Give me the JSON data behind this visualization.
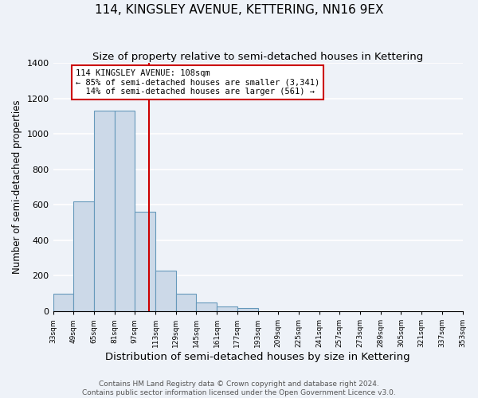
{
  "title": "114, KINGSLEY AVENUE, KETTERING, NN16 9EX",
  "subtitle": "Size of property relative to semi-detached houses in Kettering",
  "xlabel": "Distribution of semi-detached houses by size in Kettering",
  "ylabel": "Number of semi-detached properties",
  "bin_edges": [
    33,
    49,
    65,
    81,
    97,
    113,
    129,
    145,
    161,
    177,
    193,
    209,
    225,
    241,
    257,
    273,
    289,
    305,
    321,
    337,
    353
  ],
  "bin_counts": [
    100,
    620,
    1130,
    1130,
    560,
    230,
    100,
    50,
    25,
    20,
    0,
    0,
    0,
    0,
    0,
    0,
    0,
    0,
    0,
    0
  ],
  "bar_color": "#ccd9e8",
  "bar_edge_color": "#6699bb",
  "vline_x": 108,
  "vline_color": "#cc0000",
  "annotation_text": "114 KINGSLEY AVENUE: 108sqm\n← 85% of semi-detached houses are smaller (3,341)\n  14% of semi-detached houses are larger (561) →",
  "annotation_box_color": "#ffffff",
  "annotation_box_edge_color": "#cc0000",
  "ylim": [
    0,
    1400
  ],
  "yticks": [
    0,
    200,
    400,
    600,
    800,
    1000,
    1200,
    1400
  ],
  "footer_line1": "Contains HM Land Registry data © Crown copyright and database right 2024.",
  "footer_line2": "Contains public sector information licensed under the Open Government Licence v3.0.",
  "background_color": "#eef2f8",
  "grid_color": "#ffffff",
  "title_fontsize": 11,
  "subtitle_fontsize": 9.5,
  "xlabel_fontsize": 9.5,
  "ylabel_fontsize": 8.5,
  "annotation_fontsize": 7.5,
  "footer_fontsize": 6.5,
  "tick_labels": [
    "33sqm",
    "49sqm",
    "65sqm",
    "81sqm",
    "97sqm",
    "113sqm",
    "129sqm",
    "145sqm",
    "161sqm",
    "177sqm",
    "193sqm",
    "209sqm",
    "225sqm",
    "241sqm",
    "257sqm",
    "273sqm",
    "289sqm",
    "305sqm",
    "321sqm",
    "337sqm",
    "353sqm"
  ]
}
